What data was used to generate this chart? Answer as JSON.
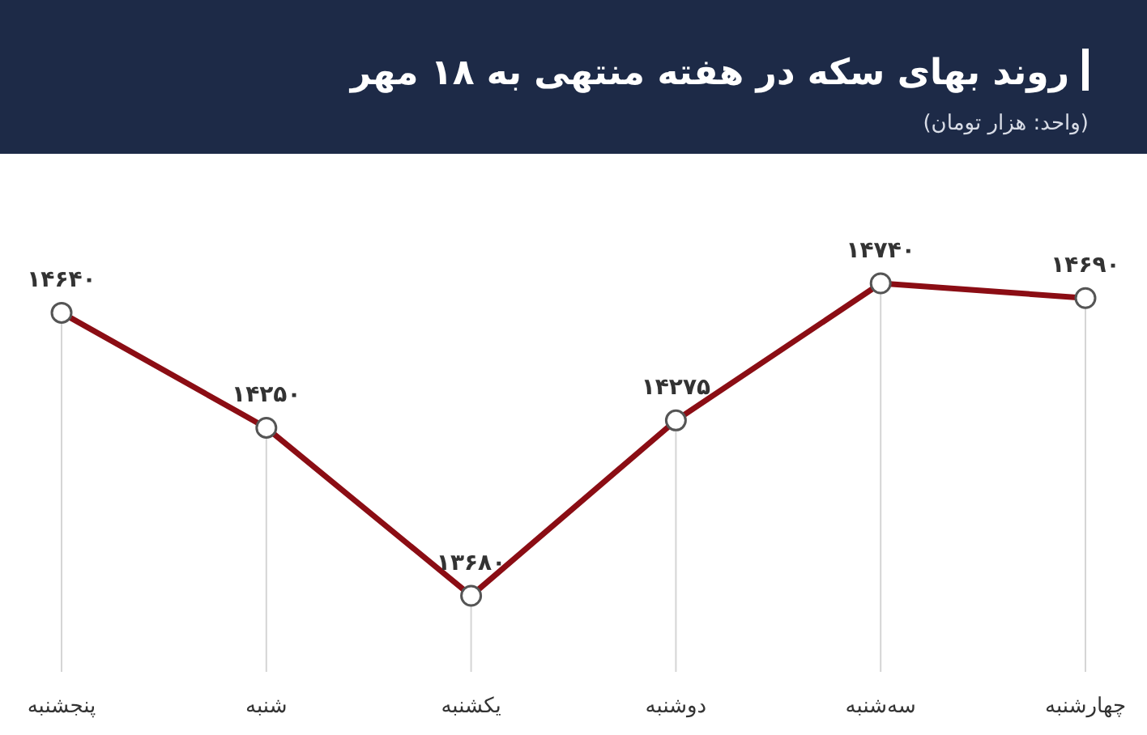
{
  "chart_data": {
    "type": "line",
    "title": "روند بهای سکه در هفته منتهی به ۱۸ مهر",
    "subtitle": "(واحد: هزار تومان)",
    "categories": [
      "پنجشنبه",
      "شنبه",
      "یکشنبه",
      "دوشنبه",
      "سه‌شنبه",
      "چهارشنبه"
    ],
    "series": [
      {
        "color": "#8b0d14",
        "values": [
          14640,
          14250,
          13680,
          14275,
          14740,
          14690
        ],
        "value_labels": [
          "۱۴۶۴۰",
          "۱۴۲۵۰",
          "۱۳۶۸۰",
          "۱۴۲۷۵",
          "۱۴۷۴۰",
          "۱۴۶۹۰"
        ]
      }
    ],
    "marker": "circle",
    "grid": "x"
  }
}
